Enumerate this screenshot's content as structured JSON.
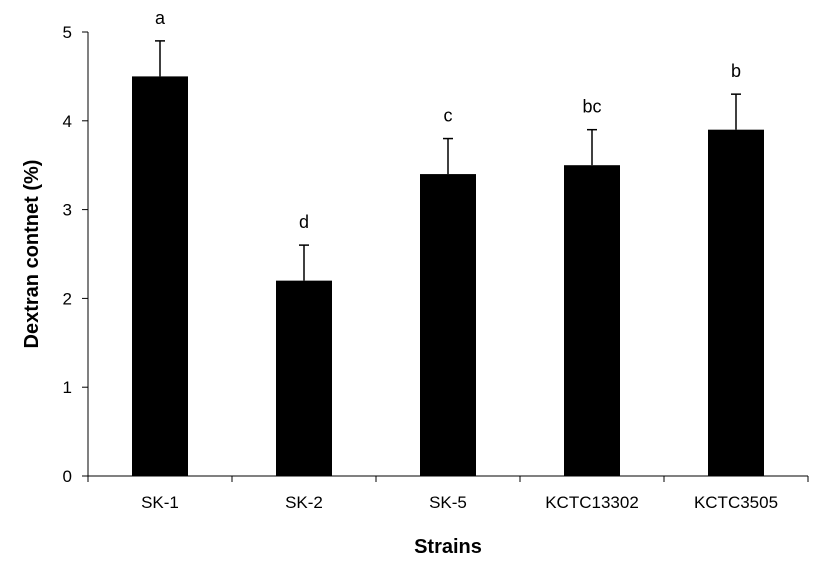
{
  "chart_data": {
    "type": "bar",
    "title": "",
    "xlabel": "Strains",
    "ylabel": "Dextran contnet (%)",
    "ylim": [
      0,
      5
    ],
    "yticks": [
      0,
      1,
      2,
      3,
      4,
      5
    ],
    "grid": false,
    "categories": [
      "SK-1",
      "SK-2",
      "SK-5",
      "KCTC13302",
      "KCTC3505"
    ],
    "values": [
      4.5,
      2.2,
      3.4,
      3.5,
      3.9
    ],
    "error_upper": [
      4.9,
      2.6,
      3.8,
      3.9,
      4.3
    ],
    "significance_labels": [
      "a",
      "d",
      "c",
      "bc",
      "b"
    ],
    "bar_color": "#000000"
  }
}
